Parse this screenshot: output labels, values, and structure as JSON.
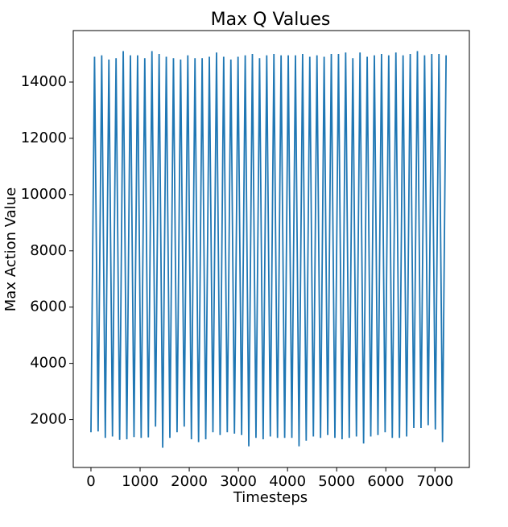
{
  "chart_data": {
    "type": "line",
    "title": "Max Q Values",
    "x_label": "Timesteps",
    "y_label": "Max Action Value",
    "x": [
      0,
      73,
      146,
      219,
      292,
      365,
      438,
      511,
      584,
      657,
      730,
      803,
      876,
      949,
      1022,
      1095,
      1168,
      1241,
      1314,
      1387,
      1460,
      1533,
      1606,
      1679,
      1752,
      1825,
      1898,
      1971,
      2044,
      2117,
      2190,
      2263,
      2336,
      2409,
      2482,
      2555,
      2628,
      2701,
      2774,
      2847,
      2920,
      2993,
      3066,
      3139,
      3212,
      3285,
      3358,
      3431,
      3504,
      3577,
      3650,
      3723,
      3796,
      3869,
      3942,
      4015,
      4088,
      4161,
      4234,
      4307,
      4380,
      4453,
      4526,
      4599,
      4672,
      4745,
      4818,
      4891,
      4964,
      5037,
      5110,
      5183,
      5256,
      5329,
      5402,
      5475,
      5548,
      5621,
      5694,
      5767,
      5840,
      5913,
      5986,
      6059,
      6132,
      6205,
      6278,
      6351,
      6424,
      6497,
      6570,
      6643,
      6716,
      6789,
      6862,
      6935,
      7008,
      7081,
      7154,
      7227
    ],
    "series": [
      {
        "color": "#1f77b4",
        "values": [
          1550,
          14900,
          1580,
          14950,
          1350,
          14800,
          1400,
          14850,
          1280,
          15100,
          1300,
          14950,
          1380,
          14950,
          1350,
          14850,
          1370,
          15100,
          1750,
          15000,
          1000,
          14900,
          1350,
          14850,
          1550,
          14800,
          1750,
          14950,
          1300,
          14850,
          1200,
          14850,
          1300,
          14900,
          1550,
          15050,
          1450,
          14900,
          1550,
          14800,
          1500,
          14900,
          1450,
          14950,
          1050,
          15000,
          1350,
          14850,
          1300,
          14950,
          1400,
          15000,
          1350,
          14950,
          1350,
          14950,
          1350,
          14950,
          1050,
          15000,
          1250,
          14900,
          1400,
          14950,
          1350,
          14900,
          1450,
          15000,
          1350,
          15000,
          1300,
          15050,
          1350,
          14850,
          1400,
          15050,
          1150,
          14900,
          1400,
          14950,
          1450,
          15000,
          1550,
          14950,
          1350,
          15050,
          1350,
          14950,
          1400,
          15000,
          1700,
          15100,
          1700,
          14950,
          1800,
          15000,
          1650,
          15000,
          1200,
          14950
        ]
      }
    ],
    "xlim": [
      -360,
      7700
    ],
    "ylim": [
      300,
      15830
    ],
    "xticks": [
      0,
      1000,
      2000,
      3000,
      4000,
      5000,
      6000,
      7000
    ],
    "yticks": [
      2000,
      4000,
      6000,
      8000,
      10000,
      12000,
      14000
    ]
  }
}
